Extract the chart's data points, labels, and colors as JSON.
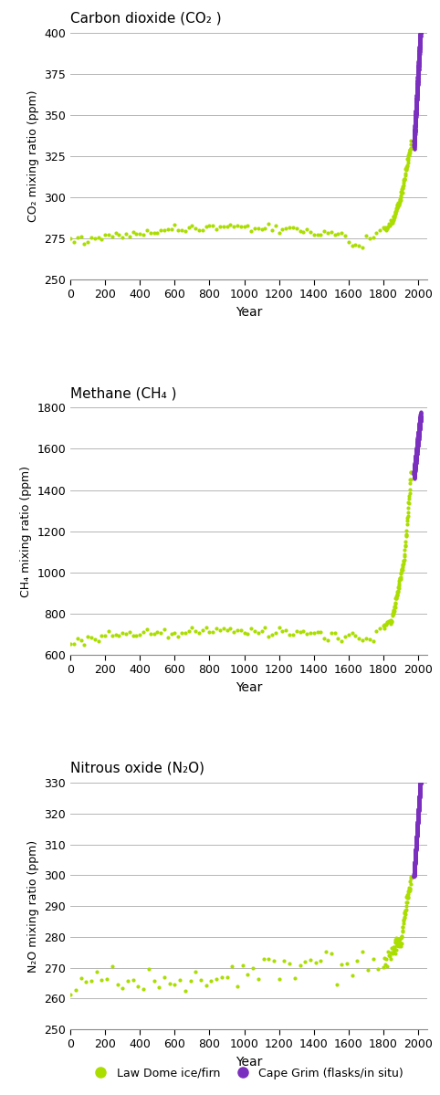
{
  "law_dome_color": "#AADD00",
  "cape_grim_color": "#7B2FBE",
  "title1": "Carbon dioxide (CO₂ )",
  "title2": "Methane (CH₄ )",
  "title3": "Nitrous oxide (N₂O)",
  "ylabel1": "CO₂ mixing ratio (ppm)",
  "ylabel2": "CH₄ mixing ratio (ppm)",
  "ylabel3": "N₂O mixing ratio (ppm)",
  "xlabel": "Year",
  "legend_law": "Law Dome ice/firn",
  "legend_cape": "Cape Grim (flasks/in situ)",
  "co2_ylim": [
    250,
    400
  ],
  "co2_yticks": [
    250,
    275,
    300,
    325,
    350,
    375,
    400
  ],
  "ch4_ylim": [
    600,
    1800
  ],
  "ch4_yticks": [
    600,
    800,
    1000,
    1200,
    1400,
    1600,
    1800
  ],
  "n2o_ylim": [
    250,
    330
  ],
  "n2o_yticks": [
    250,
    260,
    270,
    280,
    290,
    300,
    310,
    320,
    330
  ],
  "xlim": [
    0,
    2050
  ],
  "xticks": [
    0,
    200,
    400,
    600,
    800,
    1000,
    1200,
    1400,
    1600,
    1800,
    2000
  ],
  "figsize": [
    4.82,
    11.99
  ],
  "dpi": 100
}
